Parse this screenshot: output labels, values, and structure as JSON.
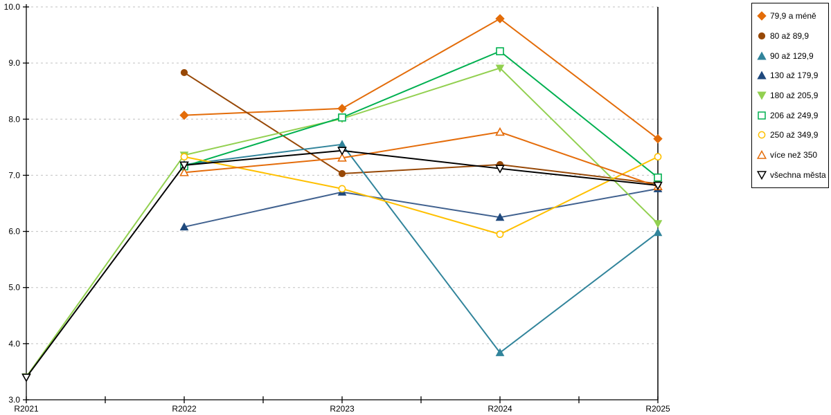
{
  "chart_data": {
    "type": "line",
    "categories": [
      "R2021",
      "R2022",
      "R2023",
      "R2024",
      "R2025"
    ],
    "series": [
      {
        "name": "79,9 a méně",
        "color": "#E36C09",
        "marker": "diamond",
        "fill": "solid",
        "values": [
          null,
          8.07,
          8.19,
          9.79,
          7.65
        ]
      },
      {
        "name": "80 až 89,9",
        "color": "#974806",
        "marker": "circle",
        "fill": "solid",
        "values": [
          null,
          8.83,
          7.03,
          7.19,
          6.85
        ]
      },
      {
        "name": "90 až 129,9",
        "color": "#31849B",
        "marker": "triangle-up",
        "fill": "solid",
        "values": [
          null,
          7.19,
          7.55,
          3.84,
          5.98
        ]
      },
      {
        "name": "130 až 179,9",
        "color": "#1F497D",
        "line_color": "#40618F",
        "marker": "triangle-up",
        "fill": "solid",
        "values": [
          null,
          6.08,
          6.7,
          6.25,
          6.76
        ]
      },
      {
        "name": "180 až 205,9",
        "color": "#92D050",
        "marker": "triangle-down",
        "fill": "solid",
        "values": [
          3.41,
          7.36,
          8.01,
          8.91,
          6.14
        ]
      },
      {
        "name": "206 až 249,9",
        "color": "#00B050",
        "marker": "square",
        "fill": "hollow",
        "values": [
          null,
          7.16,
          8.03,
          9.21,
          6.96
        ]
      },
      {
        "name": "250 až 349,9",
        "color": "#FFC000",
        "marker": "circle",
        "fill": "hollow",
        "values": [
          null,
          7.33,
          6.76,
          5.95,
          7.33
        ]
      },
      {
        "name": "více než 350",
        "color": "#E46C0A",
        "marker": "triangle-up",
        "fill": "hollow",
        "values": [
          null,
          7.05,
          7.31,
          7.77,
          6.8
        ]
      },
      {
        "name": "všechna města",
        "color": "#000000",
        "marker": "triangle-down",
        "fill": "hollow",
        "values": [
          3.4,
          7.18,
          7.44,
          7.12,
          6.82
        ]
      }
    ],
    "title": "",
    "xlabel": "",
    "ylabel": "",
    "ylim": [
      3.0,
      10.0
    ],
    "ytick_step": 1.0,
    "ytick_labels": [
      "3.0",
      "4.0",
      "5.0",
      "6.0",
      "7.0",
      "8.0",
      "9.0",
      "10.0"
    ],
    "grid": "horizontal-dashed",
    "legend_position": "right"
  },
  "style_colors": {
    "grid": "#C0C0C0",
    "axis": "#000000",
    "tick_label": "#000000",
    "background": "#FFFFFF"
  }
}
